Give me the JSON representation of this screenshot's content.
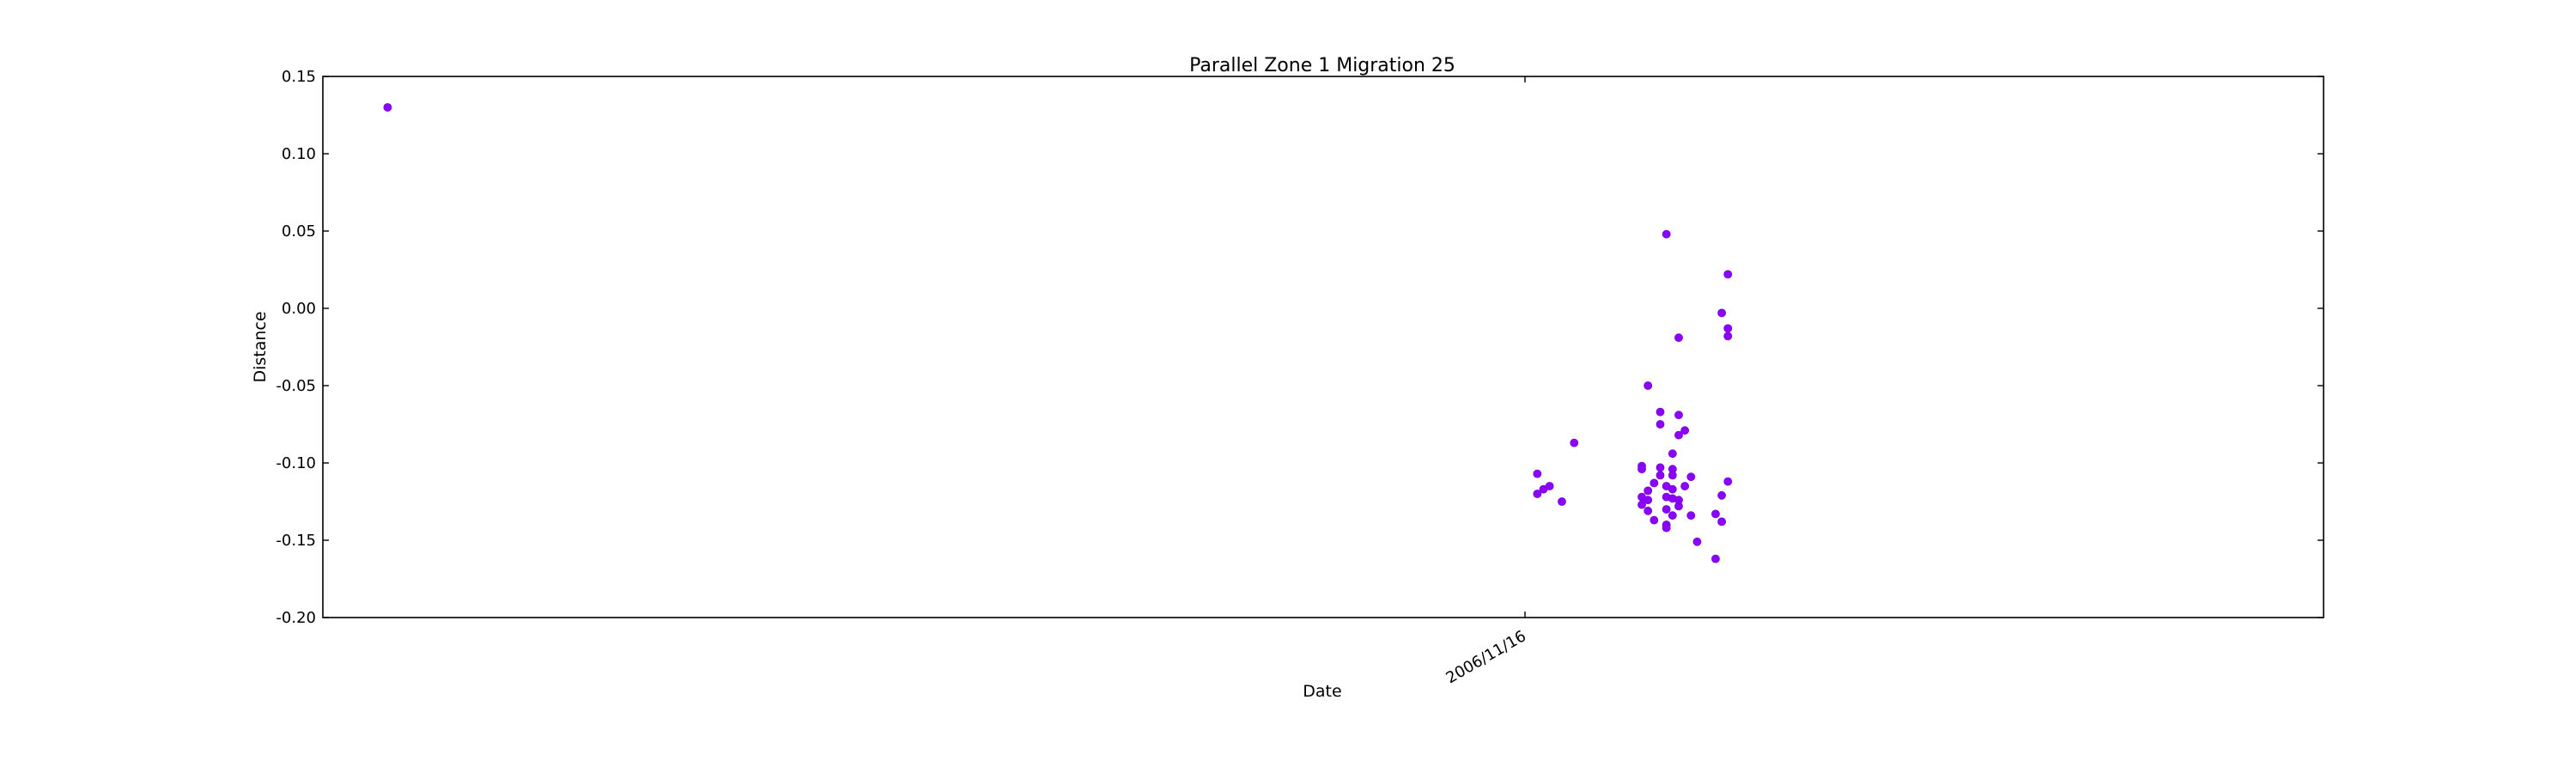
{
  "chart_data": {
    "type": "scatter",
    "title": "Parallel Zone 1 Migration 25",
    "xlabel": "Date",
    "ylabel": "Distance",
    "ylim": [
      -0.2,
      0.15
    ],
    "yticks": [
      "0.15",
      "0.10",
      "0.05",
      "0.00",
      "-0.05",
      "-0.10",
      "-0.15",
      "-0.20"
    ],
    "x_axis_type": "date",
    "xticks": [
      "2006/11/16"
    ],
    "grid": false,
    "marker_color": "#8b00ff",
    "points": [
      {
        "x": "2006-05-15",
        "y": 0.13
      },
      {
        "x": "2006-11-18",
        "y": -0.107
      },
      {
        "x": "2006-11-18",
        "y": -0.12
      },
      {
        "x": "2006-11-19",
        "y": -0.117
      },
      {
        "x": "2006-11-20",
        "y": -0.115
      },
      {
        "x": "2006-11-22",
        "y": -0.125
      },
      {
        "x": "2006-11-24",
        "y": -0.087
      },
      {
        "x": "2006-12-05",
        "y": -0.102
      },
      {
        "x": "2006-12-05",
        "y": -0.104
      },
      {
        "x": "2006-12-05",
        "y": -0.122
      },
      {
        "x": "2006-12-05",
        "y": -0.127
      },
      {
        "x": "2006-12-06",
        "y": -0.05
      },
      {
        "x": "2006-12-06",
        "y": -0.118
      },
      {
        "x": "2006-12-06",
        "y": -0.124
      },
      {
        "x": "2006-12-06",
        "y": -0.131
      },
      {
        "x": "2006-12-07",
        "y": -0.113
      },
      {
        "x": "2006-12-07",
        "y": -0.137
      },
      {
        "x": "2006-12-08",
        "y": -0.067
      },
      {
        "x": "2006-12-08",
        "y": -0.075
      },
      {
        "x": "2006-12-08",
        "y": -0.103
      },
      {
        "x": "2006-12-08",
        "y": -0.108
      },
      {
        "x": "2006-12-09",
        "y": 0.048
      },
      {
        "x": "2006-12-09",
        "y": -0.115
      },
      {
        "x": "2006-12-09",
        "y": -0.122
      },
      {
        "x": "2006-12-09",
        "y": -0.13
      },
      {
        "x": "2006-12-09",
        "y": -0.14
      },
      {
        "x": "2006-12-09",
        "y": -0.142
      },
      {
        "x": "2006-12-10",
        "y": -0.094
      },
      {
        "x": "2006-12-10",
        "y": -0.104
      },
      {
        "x": "2006-12-10",
        "y": -0.108
      },
      {
        "x": "2006-12-10",
        "y": -0.117
      },
      {
        "x": "2006-12-10",
        "y": -0.123
      },
      {
        "x": "2006-12-10",
        "y": -0.134
      },
      {
        "x": "2006-12-11",
        "y": -0.019
      },
      {
        "x": "2006-12-11",
        "y": -0.069
      },
      {
        "x": "2006-12-11",
        "y": -0.082
      },
      {
        "x": "2006-12-11",
        "y": -0.124
      },
      {
        "x": "2006-12-11",
        "y": -0.128
      },
      {
        "x": "2006-12-12",
        "y": -0.079
      },
      {
        "x": "2006-12-12",
        "y": -0.115
      },
      {
        "x": "2006-12-13",
        "y": -0.109
      },
      {
        "x": "2006-12-13",
        "y": -0.134
      },
      {
        "x": "2006-12-14",
        "y": -0.151
      },
      {
        "x": "2006-12-17",
        "y": -0.133
      },
      {
        "x": "2006-12-17",
        "y": -0.162
      },
      {
        "x": "2006-12-18",
        "y": -0.003
      },
      {
        "x": "2006-12-18",
        "y": -0.121
      },
      {
        "x": "2006-12-18",
        "y": -0.138
      },
      {
        "x": "2006-12-19",
        "y": 0.022
      },
      {
        "x": "2006-12-19",
        "y": -0.013
      },
      {
        "x": "2006-12-19",
        "y": -0.018
      },
      {
        "x": "2006-12-19",
        "y": -0.112
      }
    ]
  }
}
